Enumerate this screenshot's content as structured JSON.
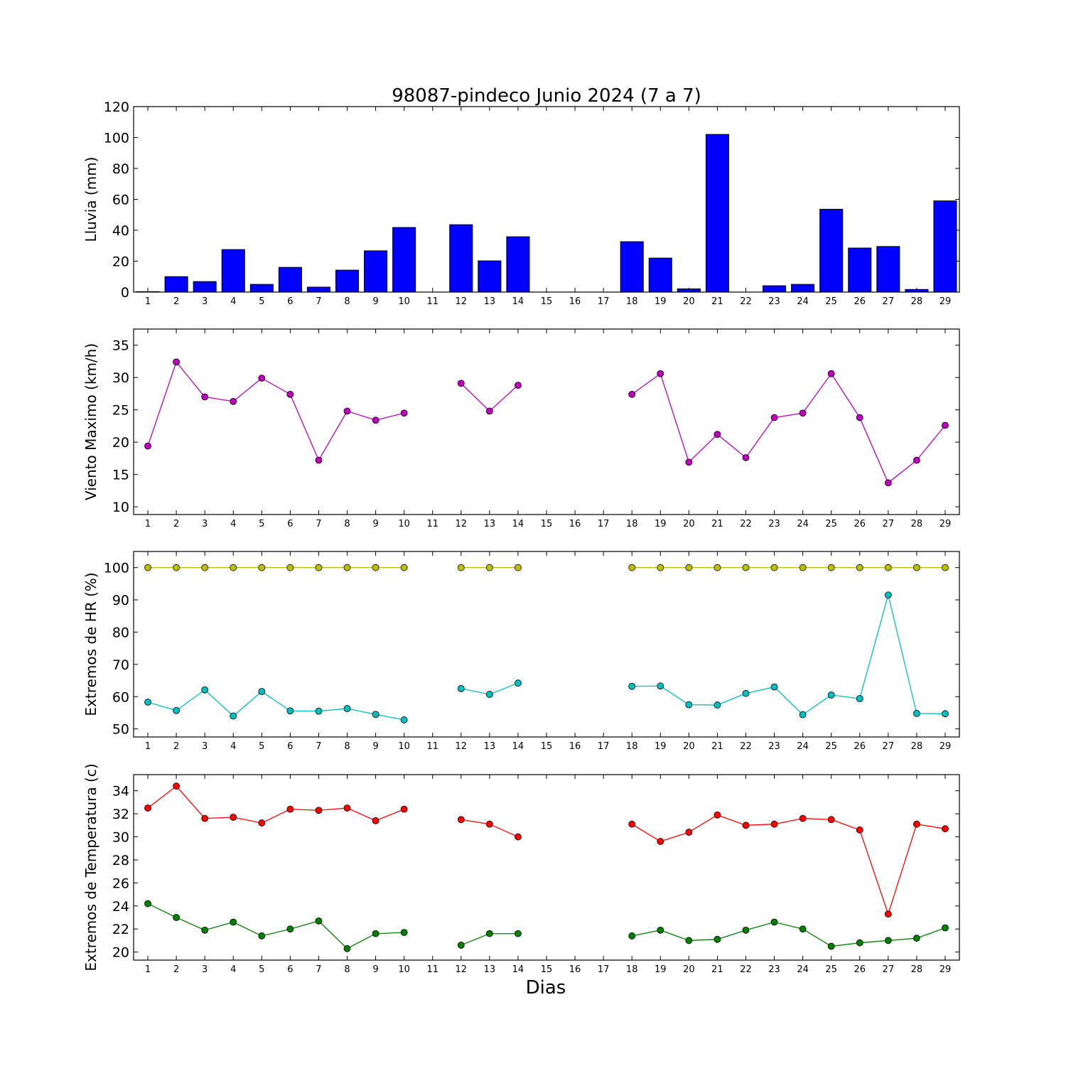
{
  "figure": {
    "title": "98087-pindeco Junio 2024  (7 a 7)",
    "xlabel": "Dias"
  },
  "chart_data": [
    {
      "type": "bar",
      "ylabel": "Lluvia (mm)",
      "ylim": [
        0,
        120
      ],
      "yticks": [
        0,
        20,
        40,
        60,
        80,
        100,
        120
      ],
      "x": [
        1,
        2,
        3,
        4,
        5,
        6,
        7,
        8,
        9,
        10,
        11,
        12,
        13,
        14,
        15,
        16,
        17,
        18,
        19,
        20,
        21,
        22,
        23,
        24,
        25,
        26,
        27,
        28,
        29
      ],
      "series": [
        {
          "color": "#0000ff",
          "values": [
            0.3,
            10,
            6.8,
            27.5,
            5,
            16,
            3.2,
            14.2,
            26.7,
            41.8,
            null,
            43.6,
            20.2,
            35.8,
            null,
            null,
            null,
            32.6,
            22,
            2.1,
            102,
            null,
            4.1,
            5,
            53.6,
            28.5,
            29.5,
            1.7,
            59
          ]
        }
      ]
    },
    {
      "type": "line",
      "ylabel": "Viento Maximo (km/h)",
      "ylim": [
        8.8,
        37.5
      ],
      "yticks": [
        10,
        15,
        20,
        25,
        30,
        35
      ],
      "x": [
        1,
        2,
        3,
        4,
        5,
        6,
        7,
        8,
        9,
        10,
        11,
        12,
        13,
        14,
        15,
        16,
        17,
        18,
        19,
        20,
        21,
        22,
        23,
        24,
        25,
        26,
        27,
        28,
        29
      ],
      "series": [
        {
          "color": "#bf00bf",
          "values": [
            19.4,
            32.4,
            27,
            26.3,
            29.9,
            27.4,
            17.2,
            24.8,
            23.4,
            24.5,
            null,
            29.1,
            24.8,
            28.8,
            null,
            null,
            null,
            27.4,
            30.6,
            16.9,
            21.2,
            17.6,
            23.8,
            24.5,
            30.6,
            23.8,
            13.7,
            17.2,
            22.6
          ]
        }
      ]
    },
    {
      "type": "line",
      "ylabel": "Extremos de HR (%)",
      "ylim": [
        47.5,
        105
      ],
      "yticks": [
        50,
        60,
        70,
        80,
        90,
        100
      ],
      "x": [
        1,
        2,
        3,
        4,
        5,
        6,
        7,
        8,
        9,
        10,
        11,
        12,
        13,
        14,
        15,
        16,
        17,
        18,
        19,
        20,
        21,
        22,
        23,
        24,
        25,
        26,
        27,
        28,
        29
      ],
      "series": [
        {
          "color": "#bfbf00",
          "values": [
            100,
            100,
            100,
            100,
            100,
            100,
            100,
            100,
            100,
            100,
            null,
            100,
            100,
            100,
            null,
            null,
            null,
            100,
            100,
            100,
            100,
            100,
            100,
            100,
            100,
            100,
            100,
            100,
            100
          ]
        },
        {
          "color": "#00bfbf",
          "values": [
            58.3,
            55.7,
            62.1,
            54,
            61.6,
            55.6,
            55.5,
            56.3,
            54.5,
            52.8,
            null,
            62.5,
            60.7,
            64.2,
            null,
            null,
            null,
            63.2,
            63.3,
            57.5,
            57.4,
            61,
            63,
            54.4,
            60.5,
            59.4,
            91.5,
            54.8,
            54.7
          ]
        }
      ]
    },
    {
      "type": "line",
      "ylabel": "Extremos de Temperatura (c)",
      "ylim": [
        19.3,
        35.4
      ],
      "yticks": [
        20,
        22,
        24,
        26,
        28,
        30,
        32,
        34
      ],
      "x": [
        1,
        2,
        3,
        4,
        5,
        6,
        7,
        8,
        9,
        10,
        11,
        12,
        13,
        14,
        15,
        16,
        17,
        18,
        19,
        20,
        21,
        22,
        23,
        24,
        25,
        26,
        27,
        28,
        29
      ],
      "series": [
        {
          "color": "#ff0000",
          "values": [
            32.5,
            34.4,
            31.6,
            31.7,
            31.2,
            32.4,
            32.3,
            32.5,
            31.4,
            32.4,
            null,
            31.5,
            31.1,
            30,
            null,
            null,
            null,
            31.1,
            29.6,
            30.4,
            31.9,
            31,
            31.1,
            31.6,
            31.5,
            30.6,
            23.3,
            31.1,
            30.7
          ]
        },
        {
          "color": "#008000",
          "values": [
            24.2,
            23,
            21.9,
            22.6,
            21.4,
            22,
            22.7,
            20.3,
            21.6,
            21.7,
            null,
            20.6,
            21.6,
            21.6,
            null,
            null,
            null,
            21.4,
            21.9,
            21,
            21.1,
            21.9,
            22.6,
            22,
            20.5,
            20.8,
            21,
            21.2,
            22.1
          ]
        }
      ]
    }
  ]
}
